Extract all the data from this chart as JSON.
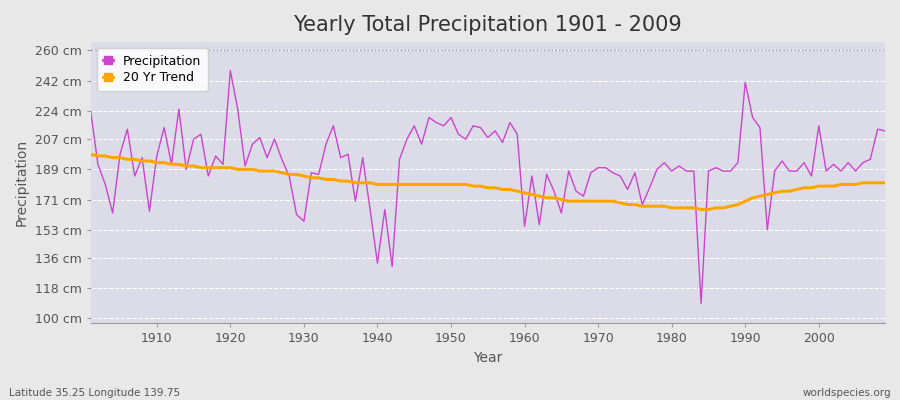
{
  "title": "Yearly Total Precipitation 1901 - 2009",
  "xlabel": "Year",
  "ylabel": "Precipitation",
  "footnote_left": "Latitude 35.25 Longitude 139.75",
  "footnote_right": "worldspecies.org",
  "years": [
    1901,
    1902,
    1903,
    1904,
    1905,
    1906,
    1907,
    1908,
    1909,
    1910,
    1911,
    1912,
    1913,
    1914,
    1915,
    1916,
    1917,
    1918,
    1919,
    1920,
    1921,
    1922,
    1923,
    1924,
    1925,
    1926,
    1927,
    1928,
    1929,
    1930,
    1931,
    1932,
    1933,
    1934,
    1935,
    1936,
    1937,
    1938,
    1939,
    1940,
    1941,
    1942,
    1943,
    1944,
    1945,
    1946,
    1947,
    1948,
    1949,
    1950,
    1951,
    1952,
    1953,
    1954,
    1955,
    1956,
    1957,
    1958,
    1959,
    1960,
    1961,
    1962,
    1963,
    1964,
    1965,
    1966,
    1967,
    1968,
    1969,
    1970,
    1971,
    1972,
    1973,
    1974,
    1975,
    1976,
    1977,
    1978,
    1979,
    1980,
    1981,
    1982,
    1983,
    1984,
    1985,
    1986,
    1987,
    1988,
    1989,
    1990,
    1991,
    1992,
    1993,
    1994,
    1995,
    1996,
    1997,
    1998,
    1999,
    2000,
    2001,
    2002,
    2003,
    2004,
    2005,
    2006,
    2007,
    2008,
    2009
  ],
  "precip": [
    224,
    192,
    180,
    163,
    198,
    213,
    185,
    196,
    164,
    197,
    214,
    192,
    225,
    189,
    207,
    210,
    185,
    197,
    192,
    248,
    225,
    191,
    204,
    208,
    196,
    207,
    195,
    185,
    162,
    158,
    187,
    186,
    204,
    215,
    196,
    198,
    170,
    196,
    165,
    133,
    165,
    131,
    195,
    207,
    215,
    204,
    220,
    217,
    215,
    220,
    210,
    207,
    215,
    214,
    208,
    212,
    205,
    217,
    210,
    155,
    185,
    156,
    186,
    176,
    163,
    188,
    176,
    173,
    187,
    190,
    190,
    187,
    185,
    177,
    187,
    168,
    178,
    189,
    193,
    188,
    191,
    188,
    188,
    109,
    188,
    190,
    188,
    188,
    193,
    241,
    220,
    214,
    153,
    188,
    194,
    188,
    188,
    193,
    185,
    215,
    188,
    192,
    188,
    193,
    188,
    193,
    195,
    213,
    212
  ],
  "trend": [
    198,
    197,
    197,
    196,
    196,
    195,
    195,
    194,
    194,
    193,
    193,
    192,
    192,
    191,
    191,
    190,
    190,
    190,
    190,
    190,
    189,
    189,
    189,
    188,
    188,
    188,
    187,
    186,
    186,
    185,
    184,
    184,
    183,
    183,
    182,
    182,
    181,
    181,
    181,
    180,
    180,
    180,
    180,
    180,
    180,
    180,
    180,
    180,
    180,
    180,
    180,
    180,
    179,
    179,
    178,
    178,
    177,
    177,
    176,
    175,
    174,
    173,
    172,
    172,
    171,
    170,
    170,
    170,
    170,
    170,
    170,
    170,
    169,
    168,
    168,
    167,
    167,
    167,
    167,
    166,
    166,
    166,
    166,
    165,
    165,
    166,
    166,
    167,
    168,
    170,
    172,
    173,
    174,
    175,
    176,
    176,
    177,
    178,
    178,
    179,
    179,
    179,
    180,
    180,
    180,
    181,
    181,
    181,
    181
  ],
  "precip_color": "#CC44CC",
  "trend_color": "#FFA500",
  "fig_bg_color": "#E8E8E8",
  "plot_bg_color": "#DCDCE8",
  "grid_color": "#FFFFFF",
  "yticks": [
    100,
    118,
    136,
    153,
    171,
    189,
    207,
    224,
    242,
    260
  ],
  "ytick_labels": [
    "100 cm",
    "118 cm",
    "136 cm",
    "153 cm",
    "171 cm",
    "189 cm",
    "207 cm",
    "224 cm",
    "242 cm",
    "260 cm"
  ],
  "ylim": [
    97,
    265
  ],
  "xlim": [
    1901,
    2009
  ],
  "xticks": [
    1910,
    1920,
    1930,
    1940,
    1950,
    1960,
    1970,
    1980,
    1990,
    2000
  ],
  "title_fontsize": 15,
  "axis_label_fontsize": 10,
  "tick_fontsize": 9,
  "legend_fontsize": 9,
  "figsize": [
    9.0,
    4.0
  ],
  "dpi": 100
}
